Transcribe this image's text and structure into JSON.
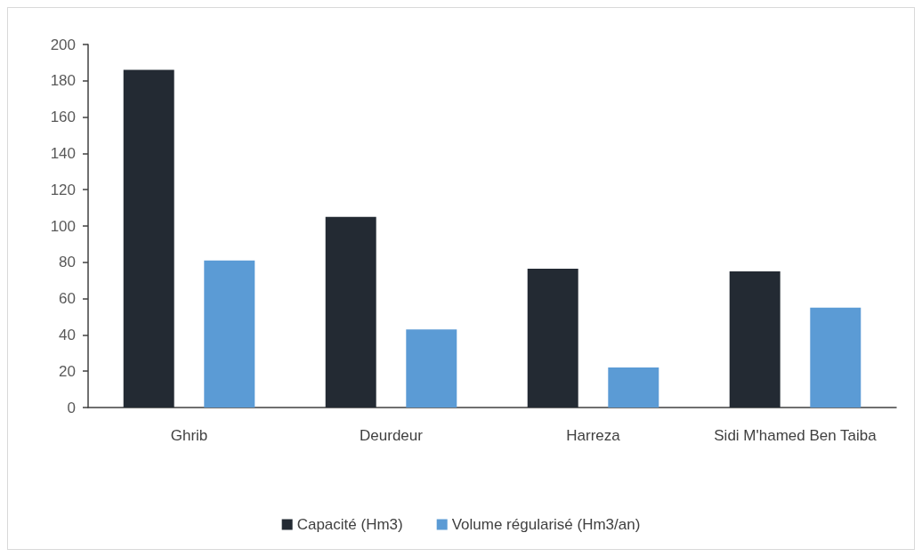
{
  "chart_data": {
    "type": "bar",
    "categories": [
      "Ghrib",
      "Deurdeur",
      "Harreza",
      "Sidi M'hamed Ben Taiba"
    ],
    "series": [
      {
        "name": "Capacité (Hm3)",
        "color": "#232a33",
        "values": [
          186,
          105,
          76.5,
          75
        ]
      },
      {
        "name": "Volume régularisé (Hm3/an)",
        "color": "#5b9bd5",
        "values": [
          81,
          43,
          22,
          55
        ]
      }
    ],
    "ylim": [
      0,
      200
    ],
    "yticks": [
      0,
      20,
      40,
      60,
      80,
      100,
      120,
      140,
      160,
      180,
      200
    ],
    "grid": false,
    "legend": "bottom"
  }
}
